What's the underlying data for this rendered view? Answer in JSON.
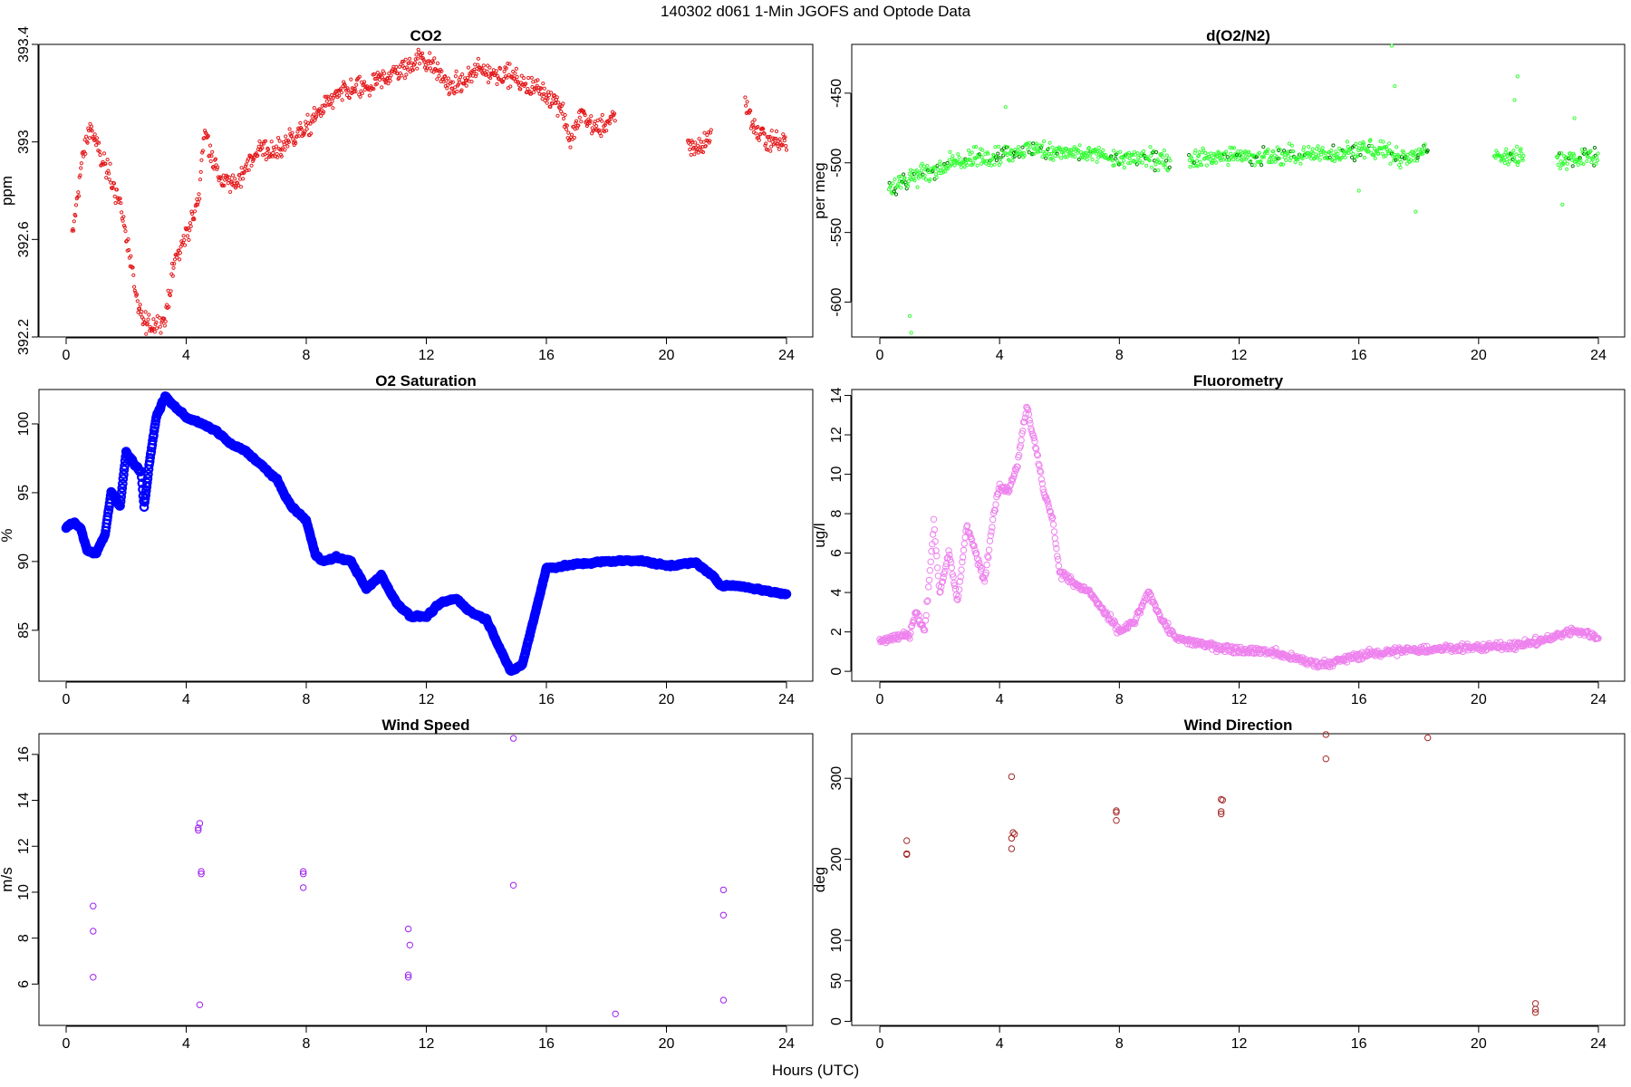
{
  "figure": {
    "title": "140302   d061   1-Min  JGOFS and Optode Data",
    "xlabel": "Hours (UTC)"
  },
  "chart_data": [
    {
      "id": "co2",
      "type": "scatter",
      "title": "CO2",
      "ylabel": "ppm",
      "color": "#e41a1c",
      "marker_size": "small",
      "xlim": [
        0,
        24
      ],
      "ylim": [
        392.2,
        393.4
      ],
      "xticks": [
        0,
        4,
        8,
        12,
        16,
        20,
        24
      ],
      "yticks": [
        392.2,
        392.6,
        393.0,
        393.4
      ],
      "series_profile": [
        [
          0.2,
          392.6
        ],
        [
          0.5,
          392.9
        ],
        [
          0.8,
          393.07
        ],
        [
          1.1,
          392.95
        ],
        [
          1.5,
          392.85
        ],
        [
          1.8,
          392.75
        ],
        [
          2.1,
          392.55
        ],
        [
          2.4,
          392.3
        ],
        [
          2.7,
          392.25
        ],
        [
          3.0,
          392.25
        ],
        [
          3.3,
          392.28
        ],
        [
          3.6,
          392.5
        ],
        [
          4.0,
          392.62
        ],
        [
          4.4,
          392.75
        ],
        [
          4.6,
          393.05
        ],
        [
          5.1,
          392.85
        ],
        [
          5.6,
          392.82
        ],
        [
          6.0,
          392.9
        ],
        [
          6.5,
          392.98
        ],
        [
          7.0,
          392.95
        ],
        [
          7.5,
          393.02
        ],
        [
          8.0,
          393.05
        ],
        [
          8.6,
          393.15
        ],
        [
          9.2,
          393.2
        ],
        [
          9.8,
          393.22
        ],
        [
          10.1,
          393.22
        ],
        [
          10.8,
          393.28
        ],
        [
          11.3,
          393.3
        ],
        [
          11.8,
          393.35
        ],
        [
          12.3,
          393.3
        ],
        [
          12.8,
          393.22
        ],
        [
          13.3,
          393.25
        ],
        [
          13.8,
          393.3
        ],
        [
          14.3,
          393.28
        ],
        [
          14.7,
          393.28
        ],
        [
          15.2,
          393.24
        ],
        [
          15.7,
          393.22
        ],
        [
          16.2,
          393.18
        ],
        [
          16.5,
          393.15
        ],
        [
          16.8,
          393.0
        ],
        [
          17.2,
          393.12
        ],
        [
          17.6,
          393.05
        ],
        [
          18.0,
          393.08
        ],
        [
          18.3,
          393.1
        ],
        [
          20.7,
          392.98
        ],
        [
          21.2,
          392.98
        ],
        [
          21.5,
          393.05
        ],
        [
          22.6,
          393.16
        ],
        [
          23.0,
          393.04
        ],
        [
          23.5,
          393.0
        ],
        [
          24.0,
          393.0
        ]
      ],
      "gaps": [
        [
          18.3,
          20.7
        ],
        [
          21.5,
          22.6
        ]
      ],
      "noise": 0.045
    },
    {
      "id": "o2n2",
      "type": "scatter",
      "title": "d(O2/N2)",
      "ylabel": "per meg",
      "color": "#33ff33",
      "secondary_color": "#007a00",
      "marker_size": "small",
      "xlim": [
        0,
        24
      ],
      "ylim": [
        -625,
        -415
      ],
      "xticks": [
        0,
        4,
        8,
        12,
        16,
        20,
        24
      ],
      "yticks": [
        -600,
        -550,
        -500,
        -450
      ],
      "series_profile": [
        [
          0.3,
          -518
        ],
        [
          1.0,
          -512
        ],
        [
          2.0,
          -503
        ],
        [
          3.0,
          -497
        ],
        [
          4.0,
          -494
        ],
        [
          4.5,
          -492
        ],
        [
          5.0,
          -490
        ],
        [
          6.0,
          -492
        ],
        [
          7.0,
          -494
        ],
        [
          8.0,
          -497
        ],
        [
          9.0,
          -497
        ],
        [
          9.7,
          -498
        ],
        [
          10.3,
          -497
        ],
        [
          11.0,
          -496
        ],
        [
          12.0,
          -495
        ],
        [
          13.0,
          -496
        ],
        [
          14.0,
          -494
        ],
        [
          14.5,
          -494
        ],
        [
          15.0,
          -493
        ],
        [
          16.0,
          -490
        ],
        [
          17.0,
          -492
        ],
        [
          17.5,
          -497
        ],
        [
          18.3,
          -492
        ],
        [
          20.5,
          -496
        ],
        [
          21.5,
          -494
        ],
        [
          22.6,
          -497
        ],
        [
          24.0,
          -496
        ]
      ],
      "gaps": [
        [
          9.7,
          10.3
        ],
        [
          18.3,
          20.5
        ],
        [
          21.5,
          22.6
        ]
      ],
      "noise": 7,
      "outliers": [
        [
          1.0,
          -610
        ],
        [
          1.05,
          -622
        ],
        [
          4.2,
          -460
        ],
        [
          17.1,
          -416
        ],
        [
          17.2,
          -445
        ],
        [
          21.3,
          -438
        ],
        [
          21.2,
          -455
        ],
        [
          22.8,
          -530
        ],
        [
          23.2,
          -468
        ],
        [
          17.9,
          -535
        ],
        [
          16.0,
          -520
        ]
      ]
    },
    {
      "id": "o2sat",
      "type": "scatter",
      "title": "O2 Saturation",
      "ylabel": "%",
      "color": "#0000ff",
      "marker_size": "large",
      "xlim": [
        0,
        24
      ],
      "ylim": [
        81.3,
        102.5
      ],
      "xticks": [
        0,
        4,
        8,
        12,
        16,
        20,
        24
      ],
      "yticks": [
        85,
        90,
        95,
        100
      ],
      "series_profile": [
        [
          0.0,
          92.5
        ],
        [
          0.3,
          92.8
        ],
        [
          0.5,
          92.3
        ],
        [
          0.7,
          90.8
        ],
        [
          1.0,
          90.6
        ],
        [
          1.3,
          92.0
        ],
        [
          1.5,
          95.0
        ],
        [
          1.8,
          94.0
        ],
        [
          2.0,
          98.0
        ],
        [
          2.3,
          97.0
        ],
        [
          2.5,
          96.5
        ],
        [
          2.6,
          94.0
        ],
        [
          2.8,
          97.5
        ],
        [
          3.0,
          100.5
        ],
        [
          3.3,
          102.0
        ],
        [
          3.5,
          101.5
        ],
        [
          4.0,
          100.5
        ],
        [
          4.5,
          100.0
        ],
        [
          5.0,
          99.5
        ],
        [
          5.5,
          98.5
        ],
        [
          6.0,
          98.0
        ],
        [
          6.5,
          97.0
        ],
        [
          7.0,
          96.0
        ],
        [
          7.5,
          94.0
        ],
        [
          8.0,
          93.0
        ],
        [
          8.3,
          90.5
        ],
        [
          8.6,
          90.0
        ],
        [
          9.0,
          90.3
        ],
        [
          9.5,
          90.0
        ],
        [
          10.0,
          88.0
        ],
        [
          10.5,
          89.0
        ],
        [
          11.0,
          87.0
        ],
        [
          11.5,
          86.0
        ],
        [
          12.0,
          86.0
        ],
        [
          12.5,
          87.0
        ],
        [
          13.0,
          87.3
        ],
        [
          13.5,
          86.3
        ],
        [
          14.0,
          85.8
        ],
        [
          14.5,
          83.5
        ],
        [
          14.8,
          82.0
        ],
        [
          15.2,
          82.5
        ],
        [
          15.6,
          86.0
        ],
        [
          16.0,
          89.5
        ],
        [
          17.0,
          89.8
        ],
        [
          18.0,
          90.0
        ],
        [
          19.0,
          90.1
        ],
        [
          20.0,
          89.7
        ],
        [
          21.0,
          89.9
        ],
        [
          21.5,
          89.0
        ],
        [
          21.8,
          88.3
        ],
        [
          22.5,
          88.2
        ],
        [
          23.0,
          88.0
        ],
        [
          23.5,
          87.8
        ],
        [
          24.0,
          87.6
        ]
      ],
      "gaps": [],
      "noise": 0.15
    },
    {
      "id": "fluor",
      "type": "scatter",
      "title": "Fluorometry",
      "ylabel": "ug/l",
      "color": "#ee82ee",
      "marker_size": "medium",
      "xlim": [
        0,
        24
      ],
      "ylim": [
        -0.5,
        14.3
      ],
      "xticks": [
        0,
        4,
        8,
        12,
        16,
        20,
        24
      ],
      "yticks": [
        0,
        2,
        4,
        6,
        8,
        10,
        12,
        14
      ],
      "series_profile": [
        [
          0.0,
          1.6
        ],
        [
          0.5,
          1.7
        ],
        [
          1.0,
          1.9
        ],
        [
          1.2,
          3.0
        ],
        [
          1.5,
          2.0
        ],
        [
          1.8,
          7.5
        ],
        [
          2.0,
          4.0
        ],
        [
          2.3,
          6.0
        ],
        [
          2.6,
          3.5
        ],
        [
          2.9,
          7.5
        ],
        [
          3.2,
          6.0
        ],
        [
          3.5,
          4.5
        ],
        [
          3.8,
          8.0
        ],
        [
          4.0,
          9.5
        ],
        [
          4.3,
          9.2
        ],
        [
          4.6,
          10.5
        ],
        [
          4.9,
          13.5
        ],
        [
          5.2,
          11.5
        ],
        [
          5.5,
          9.0
        ],
        [
          5.8,
          7.5
        ],
        [
          6.0,
          5.0
        ],
        [
          6.5,
          4.5
        ],
        [
          7.0,
          4.0
        ],
        [
          7.5,
          3.0
        ],
        [
          8.0,
          2.0
        ],
        [
          8.5,
          2.5
        ],
        [
          9.0,
          4.0
        ],
        [
          9.3,
          3.0
        ],
        [
          9.6,
          2.2
        ],
        [
          10.0,
          1.6
        ],
        [
          11.0,
          1.3
        ],
        [
          12.0,
          1.1
        ],
        [
          13.0,
          1.0
        ],
        [
          14.0,
          0.6
        ],
        [
          14.5,
          0.4
        ],
        [
          15.0,
          0.4
        ],
        [
          15.5,
          0.6
        ],
        [
          16.0,
          0.8
        ],
        [
          17.0,
          1.0
        ],
        [
          18.0,
          1.1
        ],
        [
          19.0,
          1.2
        ],
        [
          20.0,
          1.2
        ],
        [
          21.0,
          1.3
        ],
        [
          22.0,
          1.5
        ],
        [
          23.0,
          2.0
        ],
        [
          23.3,
          2.1
        ],
        [
          24.0,
          1.7
        ]
      ],
      "gaps": [],
      "noise": 0.2
    },
    {
      "id": "wspd",
      "type": "scatter",
      "title": "Wind Speed",
      "ylabel": "m/s",
      "color": "#a020f0",
      "marker_size": "medium",
      "xlim": [
        0,
        24
      ],
      "ylim": [
        4.2,
        16.9
      ],
      "xticks": [
        0,
        4,
        8,
        12,
        16,
        20,
        24
      ],
      "yticks": [
        6,
        8,
        10,
        12,
        14,
        16
      ],
      "points": [
        [
          0.9,
          9.4
        ],
        [
          0.9,
          8.3
        ],
        [
          0.9,
          6.3
        ],
        [
          4.4,
          12.8
        ],
        [
          4.45,
          13.0
        ],
        [
          4.4,
          12.7
        ],
        [
          4.5,
          10.9
        ],
        [
          4.5,
          10.8
        ],
        [
          4.45,
          5.1
        ],
        [
          7.9,
          10.8
        ],
        [
          7.9,
          10.9
        ],
        [
          7.9,
          10.2
        ],
        [
          11.4,
          8.4
        ],
        [
          11.45,
          7.7
        ],
        [
          11.4,
          6.4
        ],
        [
          11.4,
          6.3
        ],
        [
          14.9,
          16.7
        ],
        [
          14.9,
          10.3
        ],
        [
          18.3,
          4.7
        ],
        [
          21.9,
          10.1
        ],
        [
          21.9,
          9.0
        ],
        [
          21.9,
          5.3
        ]
      ]
    },
    {
      "id": "wdir",
      "type": "scatter",
      "title": "Wind Direction",
      "ylabel": "deg",
      "color": "#a52a2a",
      "marker_size": "medium",
      "xlim": [
        0,
        24
      ],
      "ylim": [
        -5,
        355
      ],
      "xticks": [
        0,
        4,
        8,
        12,
        16,
        20,
        24
      ],
      "yticks": [
        0,
        50,
        100,
        200,
        300
      ],
      "points": [
        [
          0.9,
          223
        ],
        [
          0.9,
          207
        ],
        [
          0.9,
          206
        ],
        [
          4.4,
          302
        ],
        [
          4.45,
          233
        ],
        [
          4.5,
          231
        ],
        [
          4.4,
          226
        ],
        [
          4.4,
          213
        ],
        [
          7.9,
          260
        ],
        [
          7.9,
          258
        ],
        [
          7.9,
          248
        ],
        [
          11.4,
          274
        ],
        [
          11.45,
          273
        ],
        [
          11.4,
          259
        ],
        [
          11.4,
          256
        ],
        [
          14.9,
          354
        ],
        [
          14.9,
          324
        ],
        [
          18.3,
          350
        ],
        [
          21.9,
          22
        ],
        [
          21.9,
          15
        ],
        [
          21.9,
          11
        ]
      ]
    }
  ]
}
